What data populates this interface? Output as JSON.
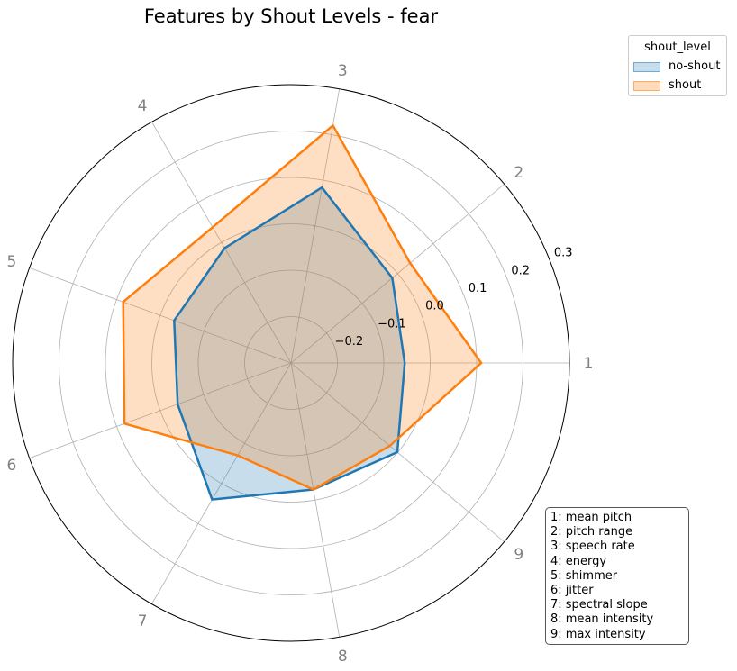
{
  "chart_data": {
    "type": "radar",
    "title": "Features by Shout Levels - fear",
    "categories": [
      "1",
      "2",
      "3",
      "4",
      "5",
      "6",
      "7",
      "8",
      "9"
    ],
    "radial_ticks": [
      "−0.2",
      "−0.1",
      "0.0",
      "0.1",
      "0.2",
      "0.3"
    ],
    "rlim": [
      -0.3,
      0.3
    ],
    "legend": {
      "title": "shout_level",
      "placement": "top-right outside"
    },
    "series": [
      {
        "name": "no-shout",
        "color": "#1f77b4",
        "values": [
          -0.055,
          -0.015,
          0.084,
          -0.014,
          -0.032,
          -0.04,
          0.04,
          -0.023,
          -0.001
        ]
      },
      {
        "name": "shout",
        "color": "#ff7f0e",
        "values": [
          0.11,
          0.035,
          0.22,
          0.038,
          0.085,
          0.082,
          -0.07,
          -0.023,
          -0.022
        ]
      }
    ],
    "key": [
      "1: mean pitch",
      "2: pitch range",
      "3: speech rate",
      "4: energy",
      "5: shimmer",
      "6: jitter",
      "7: spectral slope",
      "8: mean intensity",
      "9: max intensity"
    ]
  }
}
